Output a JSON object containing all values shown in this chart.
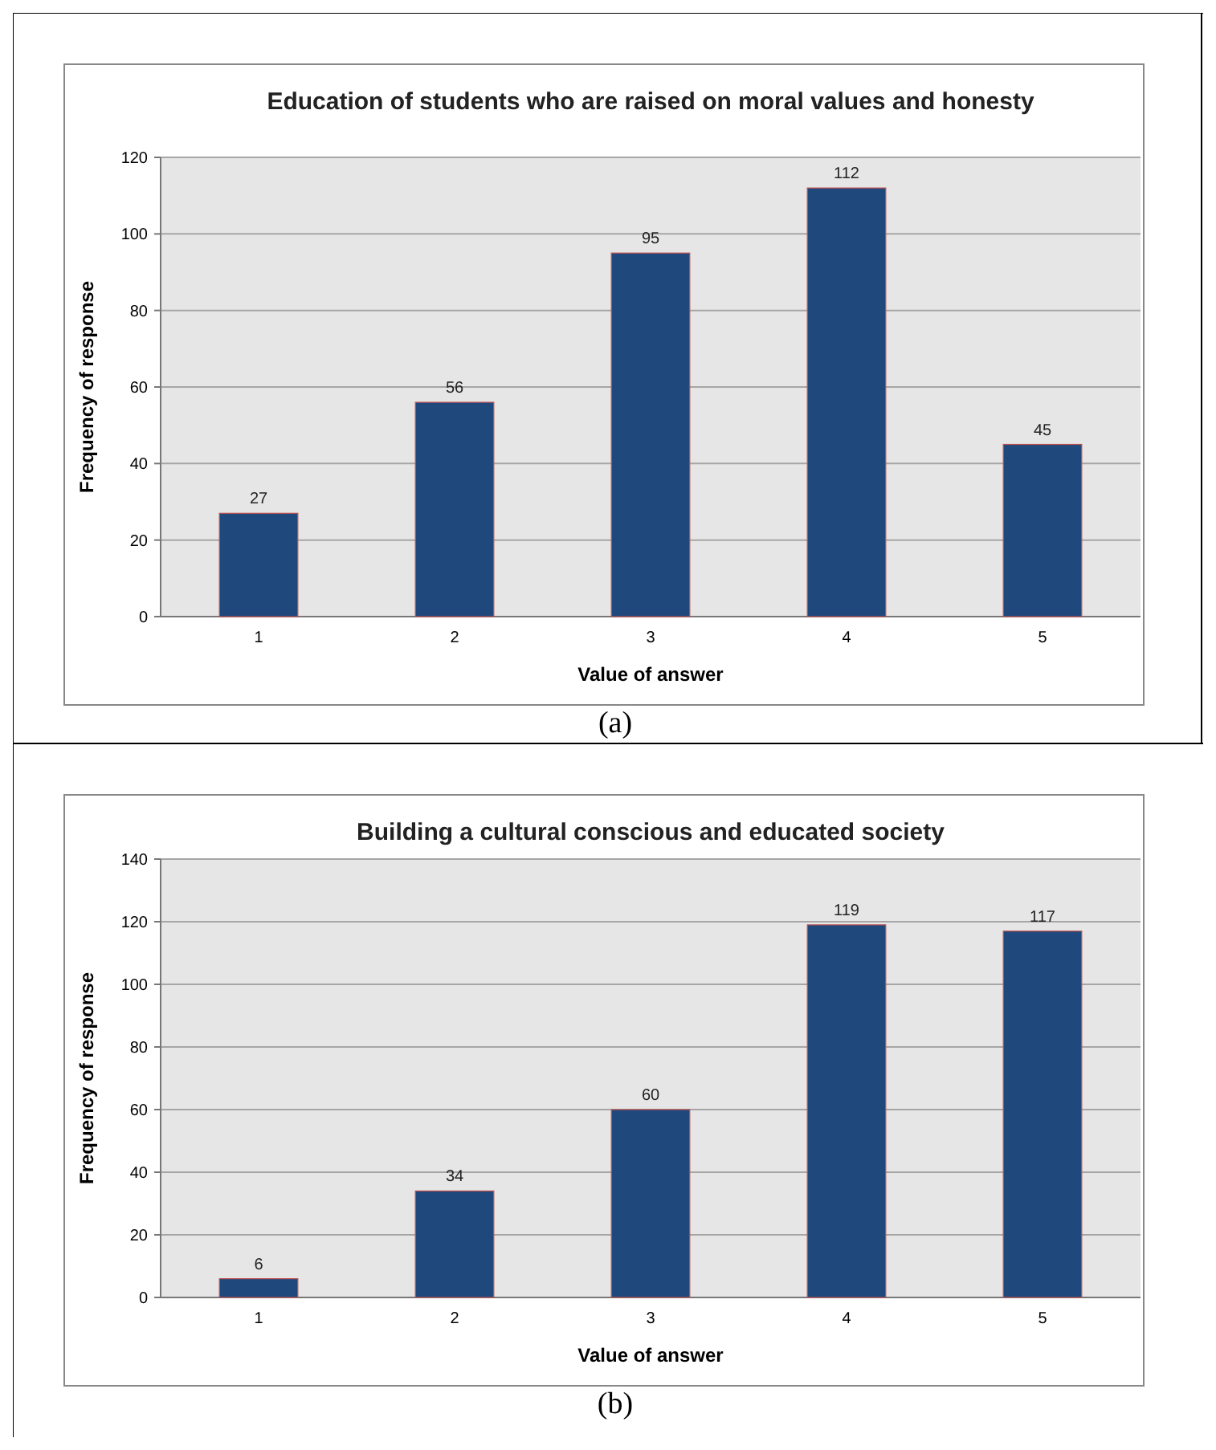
{
  "chart_data": [
    {
      "type": "bar",
      "title": "Education of students who are raised on moral values and honesty",
      "xlabel": "Value of answer",
      "ylabel": "Frequency of response",
      "categories": [
        "1",
        "2",
        "3",
        "4",
        "5"
      ],
      "values": [
        27,
        56,
        95,
        112,
        45
      ],
      "color": "#1f497d",
      "ylim": [
        0,
        120
      ],
      "yticks": [
        0,
        20,
        40,
        60,
        80,
        100,
        120
      ],
      "grid": "y",
      "data_labels": true,
      "annotations": [
        "(a)"
      ]
    },
    {
      "type": "bar",
      "title": "Building a cultural conscious and educated society",
      "xlabel": "Value of answer",
      "ylabel": "Frequency of response",
      "categories": [
        "1",
        "2",
        "3",
        "4",
        "5"
      ],
      "values": [
        6,
        34,
        60,
        119,
        117
      ],
      "color": "#1f497d",
      "ylim": [
        0,
        140
      ],
      "yticks": [
        0,
        20,
        40,
        60,
        80,
        100,
        120,
        140
      ],
      "grid": "y",
      "data_labels": true,
      "annotations": [
        "(b)"
      ]
    }
  ]
}
